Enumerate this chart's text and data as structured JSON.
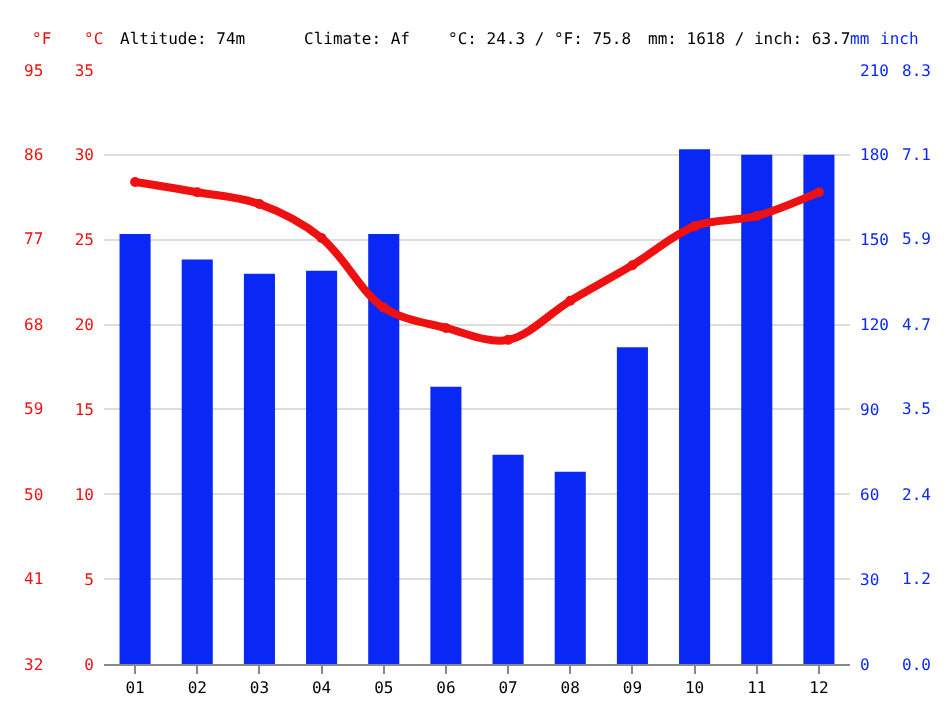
{
  "chart_data": {
    "type": "bar",
    "annotations": [
      "Altitude: 74m",
      "Climate: Af",
      "°C: 24.3 / °F: 75.8",
      "mm: 1618 / inch: 63.7",
      "inch",
      "0.0",
      "1.2",
      "2.4",
      "3.5",
      "4.7",
      "5.9",
      "7.1",
      "8.3"
    ],
    "categories": [
      "01",
      "02",
      "03",
      "04",
      "05",
      "06",
      "07",
      "08",
      "09",
      "10",
      "11",
      "12"
    ],
    "ylabel": "°C",
    "y2label": "mm",
    "y3label": "°F",
    "ylim": [
      0,
      35
    ],
    "yticks": [
      0,
      5,
      10,
      15,
      20,
      25,
      30,
      35
    ],
    "y2lim": [
      0,
      210
    ],
    "y2ticks": [
      0,
      30,
      60,
      90,
      120,
      150,
      180,
      210
    ],
    "y3lim": [
      32,
      95
    ],
    "y3ticks": [
      32,
      41,
      50,
      59,
      68,
      77,
      86,
      95
    ],
    "series": [
      {
        "axis": "y2",
        "color": "#0a28f5",
        "values": [
          152,
          143,
          138,
          139,
          152,
          98,
          74,
          68,
          112,
          182,
          180,
          180
        ]
      },
      {
        "type": "line",
        "color": "#ee1111",
        "values": [
          28.4,
          27.8,
          27.1,
          25.1,
          21.0,
          19.8,
          19.1,
          21.4,
          23.5,
          25.8,
          26.4,
          27.8
        ]
      }
    ],
    "grid": "y",
    "marker": "circle",
    "line_style": "solid"
  }
}
